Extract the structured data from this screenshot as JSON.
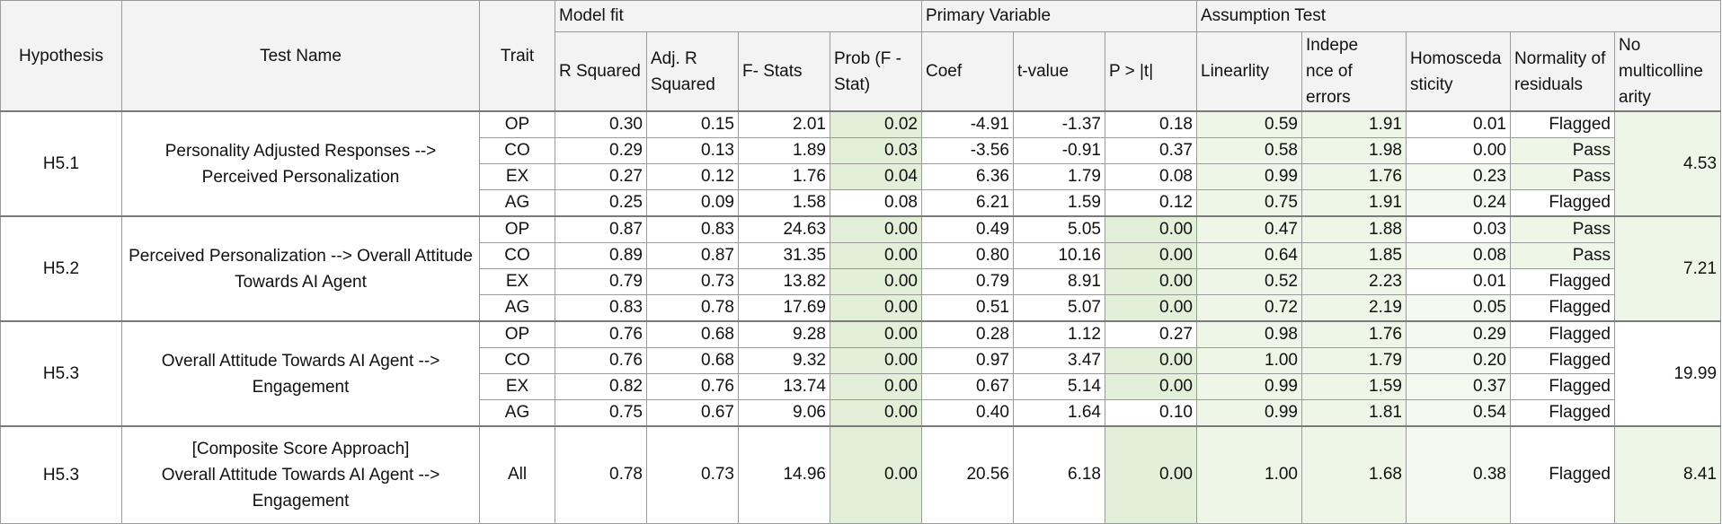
{
  "headers": {
    "hypothesis": "Hypothesis",
    "test_name": "Test Name",
    "trait": "Trait",
    "group_model_fit": "Model fit",
    "group_primary": "Primary Variable",
    "group_assumption": "Assumption Test",
    "cols": [
      "R Squared",
      "Adj. R Squared",
      "F- Stats",
      "Prob (F - Stat)",
      "Coef",
      "t-value",
      "P > |t|",
      "Linearlity",
      "Independence of errors",
      "Homoscedasticity",
      "Normality of residuals",
      "No multicollinearity"
    ]
  },
  "header_display": {
    "adj": [
      "Adj. R",
      "Squared"
    ],
    "prob": [
      "Prob (F -",
      "Stat)"
    ],
    "indep": [
      "Indepe",
      "nce of",
      "errors"
    ],
    "homo": [
      "Homosceda",
      "sticity"
    ],
    "norm": [
      "Normality of",
      "residuals"
    ],
    "multi": [
      "No",
      "multicolline",
      "arity"
    ]
  },
  "groups": [
    {
      "hypothesis": "H5.1",
      "test_name": "Personality Adjusted Responses --> Perceived Personalization",
      "multicollinearity": "4.53",
      "rows": [
        {
          "trait": "OP",
          "r2": "0.30",
          "adj": "0.15",
          "f": "2.01",
          "prob": "0.02",
          "coef": "-4.91",
          "t": "-1.37",
          "p": "0.18",
          "lin": "0.59",
          "ind": "1.91",
          "homo": "0.01",
          "norm": "Flagged"
        },
        {
          "trait": "CO",
          "r2": "0.29",
          "adj": "0.13",
          "f": "1.89",
          "prob": "0.03",
          "coef": "-3.56",
          "t": "-0.91",
          "p": "0.37",
          "lin": "0.58",
          "ind": "1.98",
          "homo": "0.00",
          "norm": "Pass"
        },
        {
          "trait": "EX",
          "r2": "0.27",
          "adj": "0.12",
          "f": "1.76",
          "prob": "0.04",
          "coef": "6.36",
          "t": "1.79",
          "p": "0.08",
          "lin": "0.99",
          "ind": "1.76",
          "homo": "0.23",
          "norm": "Pass"
        },
        {
          "trait": "AG",
          "r2": "0.25",
          "adj": "0.09",
          "f": "1.58",
          "prob": "0.08",
          "coef": "6.21",
          "t": "1.59",
          "p": "0.12",
          "lin": "0.75",
          "ind": "1.91",
          "homo": "0.24",
          "norm": "Flagged"
        }
      ]
    },
    {
      "hypothesis": "H5.2",
      "test_name": "Perceived Personalization --> Overall Attitude Towards AI Agent",
      "multicollinearity": "7.21",
      "rows": [
        {
          "trait": "OP",
          "r2": "0.87",
          "adj": "0.83",
          "f": "24.63",
          "prob": "0.00",
          "coef": "0.49",
          "t": "5.05",
          "p": "0.00",
          "lin": "0.47",
          "ind": "1.88",
          "homo": "0.03",
          "norm": "Pass"
        },
        {
          "trait": "CO",
          "r2": "0.89",
          "adj": "0.87",
          "f": "31.35",
          "prob": "0.00",
          "coef": "0.80",
          "t": "10.16",
          "p": "0.00",
          "lin": "0.64",
          "ind": "1.85",
          "homo": "0.08",
          "norm": "Pass"
        },
        {
          "trait": "EX",
          "r2": "0.79",
          "adj": "0.73",
          "f": "13.82",
          "prob": "0.00",
          "coef": "0.79",
          "t": "8.91",
          "p": "0.00",
          "lin": "0.52",
          "ind": "2.23",
          "homo": "0.01",
          "norm": "Flagged"
        },
        {
          "trait": "AG",
          "r2": "0.83",
          "adj": "0.78",
          "f": "17.69",
          "prob": "0.00",
          "coef": "0.51",
          "t": "5.07",
          "p": "0.00",
          "lin": "0.72",
          "ind": "2.19",
          "homo": "0.05",
          "norm": "Flagged"
        }
      ]
    },
    {
      "hypothesis": "H5.3",
      "test_name": "Overall Attitude Towards AI Agent --> Engagement",
      "multicollinearity": "19.99",
      "rows": [
        {
          "trait": "OP",
          "r2": "0.76",
          "adj": "0.68",
          "f": "9.28",
          "prob": "0.00",
          "coef": "0.28",
          "t": "1.12",
          "p": "0.27",
          "lin": "0.98",
          "ind": "1.76",
          "homo": "0.29",
          "norm": "Flagged"
        },
        {
          "trait": "CO",
          "r2": "0.76",
          "adj": "0.68",
          "f": "9.32",
          "prob": "0.00",
          "coef": "0.97",
          "t": "3.47",
          "p": "0.00",
          "lin": "1.00",
          "ind": "1.79",
          "homo": "0.20",
          "norm": "Flagged"
        },
        {
          "trait": "EX",
          "r2": "0.82",
          "adj": "0.76",
          "f": "13.74",
          "prob": "0.00",
          "coef": "0.67",
          "t": "5.14",
          "p": "0.00",
          "lin": "0.99",
          "ind": "1.59",
          "homo": "0.37",
          "norm": "Flagged"
        },
        {
          "trait": "AG",
          "r2": "0.75",
          "adj": "0.67",
          "f": "9.06",
          "prob": "0.00",
          "coef": "0.40",
          "t": "1.64",
          "p": "0.10",
          "lin": "0.99",
          "ind": "1.81",
          "homo": "0.54",
          "norm": "Flagged"
        }
      ]
    }
  ],
  "composite": {
    "hypothesis": "H5.3",
    "test_name_line1": "[Composite Score Approach]",
    "test_name_line2": "Overall Attitude Towards AI Agent -->",
    "test_name_line3": "Engagement",
    "trait": "All",
    "r2": "0.78",
    "adj": "0.73",
    "f": "14.96",
    "prob": "0.00",
    "coef": "20.56",
    "t": "6.18",
    "p": "0.00",
    "lin": "1.00",
    "ind": "1.68",
    "homo": "0.38",
    "norm": "Flagged",
    "multi": "8.41"
  },
  "colors": {
    "highlight_strong": "#e2f0d9",
    "highlight_mid": "#eef6e8",
    "highlight_light": "#f4f9f0",
    "header_bg": "#f3f3f3",
    "border": "#9a9a9a"
  }
}
